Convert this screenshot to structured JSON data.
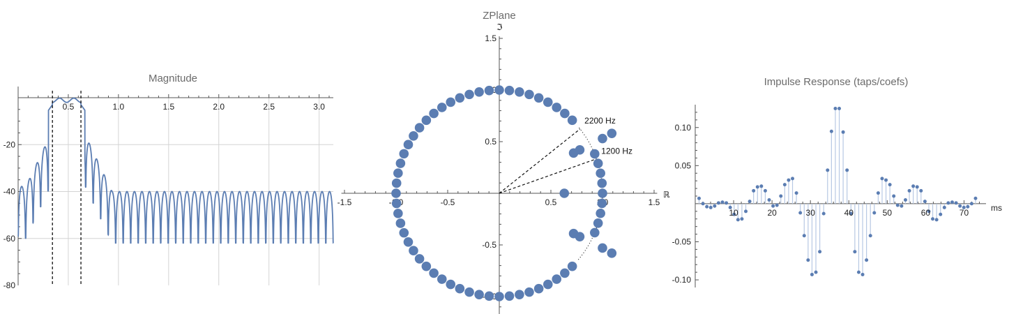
{
  "chart_data": [
    {
      "type": "line",
      "title": "Magnitude",
      "xlim": [
        0,
        3.1416
      ],
      "ylim": [
        -80,
        0
      ],
      "x_ticks": [
        "0.5",
        "1.0",
        "1.5",
        "2.0",
        "2.5",
        "3.0"
      ],
      "y_ticks": [
        "-20",
        "-40",
        "-60",
        "-80"
      ],
      "passband_markers": [
        0.342,
        0.626
      ],
      "passband_ripple_max_db": -0.5,
      "stopband_floor_db": -55,
      "series_color": "#5b7db2",
      "grid": true
    },
    {
      "type": "scatter",
      "title": "ZPlane",
      "xlabel": "ℝ",
      "ylabel": "ℑ",
      "xlim": [
        -1.5,
        1.5
      ],
      "ylim": [
        -1.5,
        1.5
      ],
      "x_ticks": [
        "-1.5",
        "-1.0",
        "-0.5",
        "0.5",
        "1.0",
        "1.5"
      ],
      "y_ticks": [
        "1.5",
        "1.0",
        "0.5",
        "-0.5",
        "-1.0"
      ],
      "unit_circle_zero_count": 64,
      "points": [
        {
          "x": 0.63,
          "y": 0.0
        },
        {
          "x": 0.72,
          "y": 0.39
        },
        {
          "x": 0.78,
          "y": 0.42
        },
        {
          "x": 0.72,
          "y": -0.39
        },
        {
          "x": 0.78,
          "y": -0.42
        },
        {
          "x": 1.0,
          "y": 0.53
        },
        {
          "x": 1.09,
          "y": 0.58
        },
        {
          "x": 1.0,
          "y": -0.53
        },
        {
          "x": 1.09,
          "y": -0.58
        }
      ],
      "annotations": [
        {
          "text": "2200 Hz",
          "angle_deg": 38.5
        },
        {
          "text": "1200 Hz",
          "angle_deg": 19.5
        }
      ],
      "point_color": "#5b7db2"
    },
    {
      "type": "scatter",
      "title": "Impulse Response (taps/coefs)",
      "xlabel": "ms",
      "xlim": [
        0,
        75
      ],
      "ylim": [
        -0.11,
        0.13
      ],
      "x_ticks": [
        "10",
        "20",
        "30",
        "40",
        "50",
        "60",
        "70"
      ],
      "y_ticks": [
        "0.10",
        "0.05",
        "-0.05",
        "-0.10"
      ],
      "values": [
        0.007,
        0.0,
        -0.004,
        -0.005,
        -0.003,
        0.001,
        0.002,
        0.001,
        -0.005,
        -0.014,
        -0.021,
        -0.02,
        -0.01,
        0.003,
        0.017,
        0.022,
        0.023,
        0.017,
        0.005,
        -0.003,
        -0.002,
        0.01,
        0.025,
        0.031,
        0.033,
        0.014,
        -0.012,
        -0.042,
        -0.074,
        -0.093,
        -0.09,
        -0.063,
        -0.013,
        0.044,
        0.095,
        0.125,
        0.125,
        0.094,
        0.044,
        -0.013,
        -0.063,
        -0.09,
        -0.093,
        -0.074,
        -0.042,
        -0.012,
        0.014,
        0.033,
        0.031,
        0.025,
        0.01,
        -0.002,
        -0.003,
        0.005,
        0.017,
        0.023,
        0.022,
        0.017,
        0.003,
        -0.01,
        -0.02,
        -0.021,
        -0.014,
        -0.005,
        0.001,
        0.002,
        0.001,
        -0.003,
        -0.005,
        -0.004,
        0.0,
        0.007
      ],
      "point_color": "#5b7db2",
      "stem_color": "#b7c8e3"
    }
  ]
}
